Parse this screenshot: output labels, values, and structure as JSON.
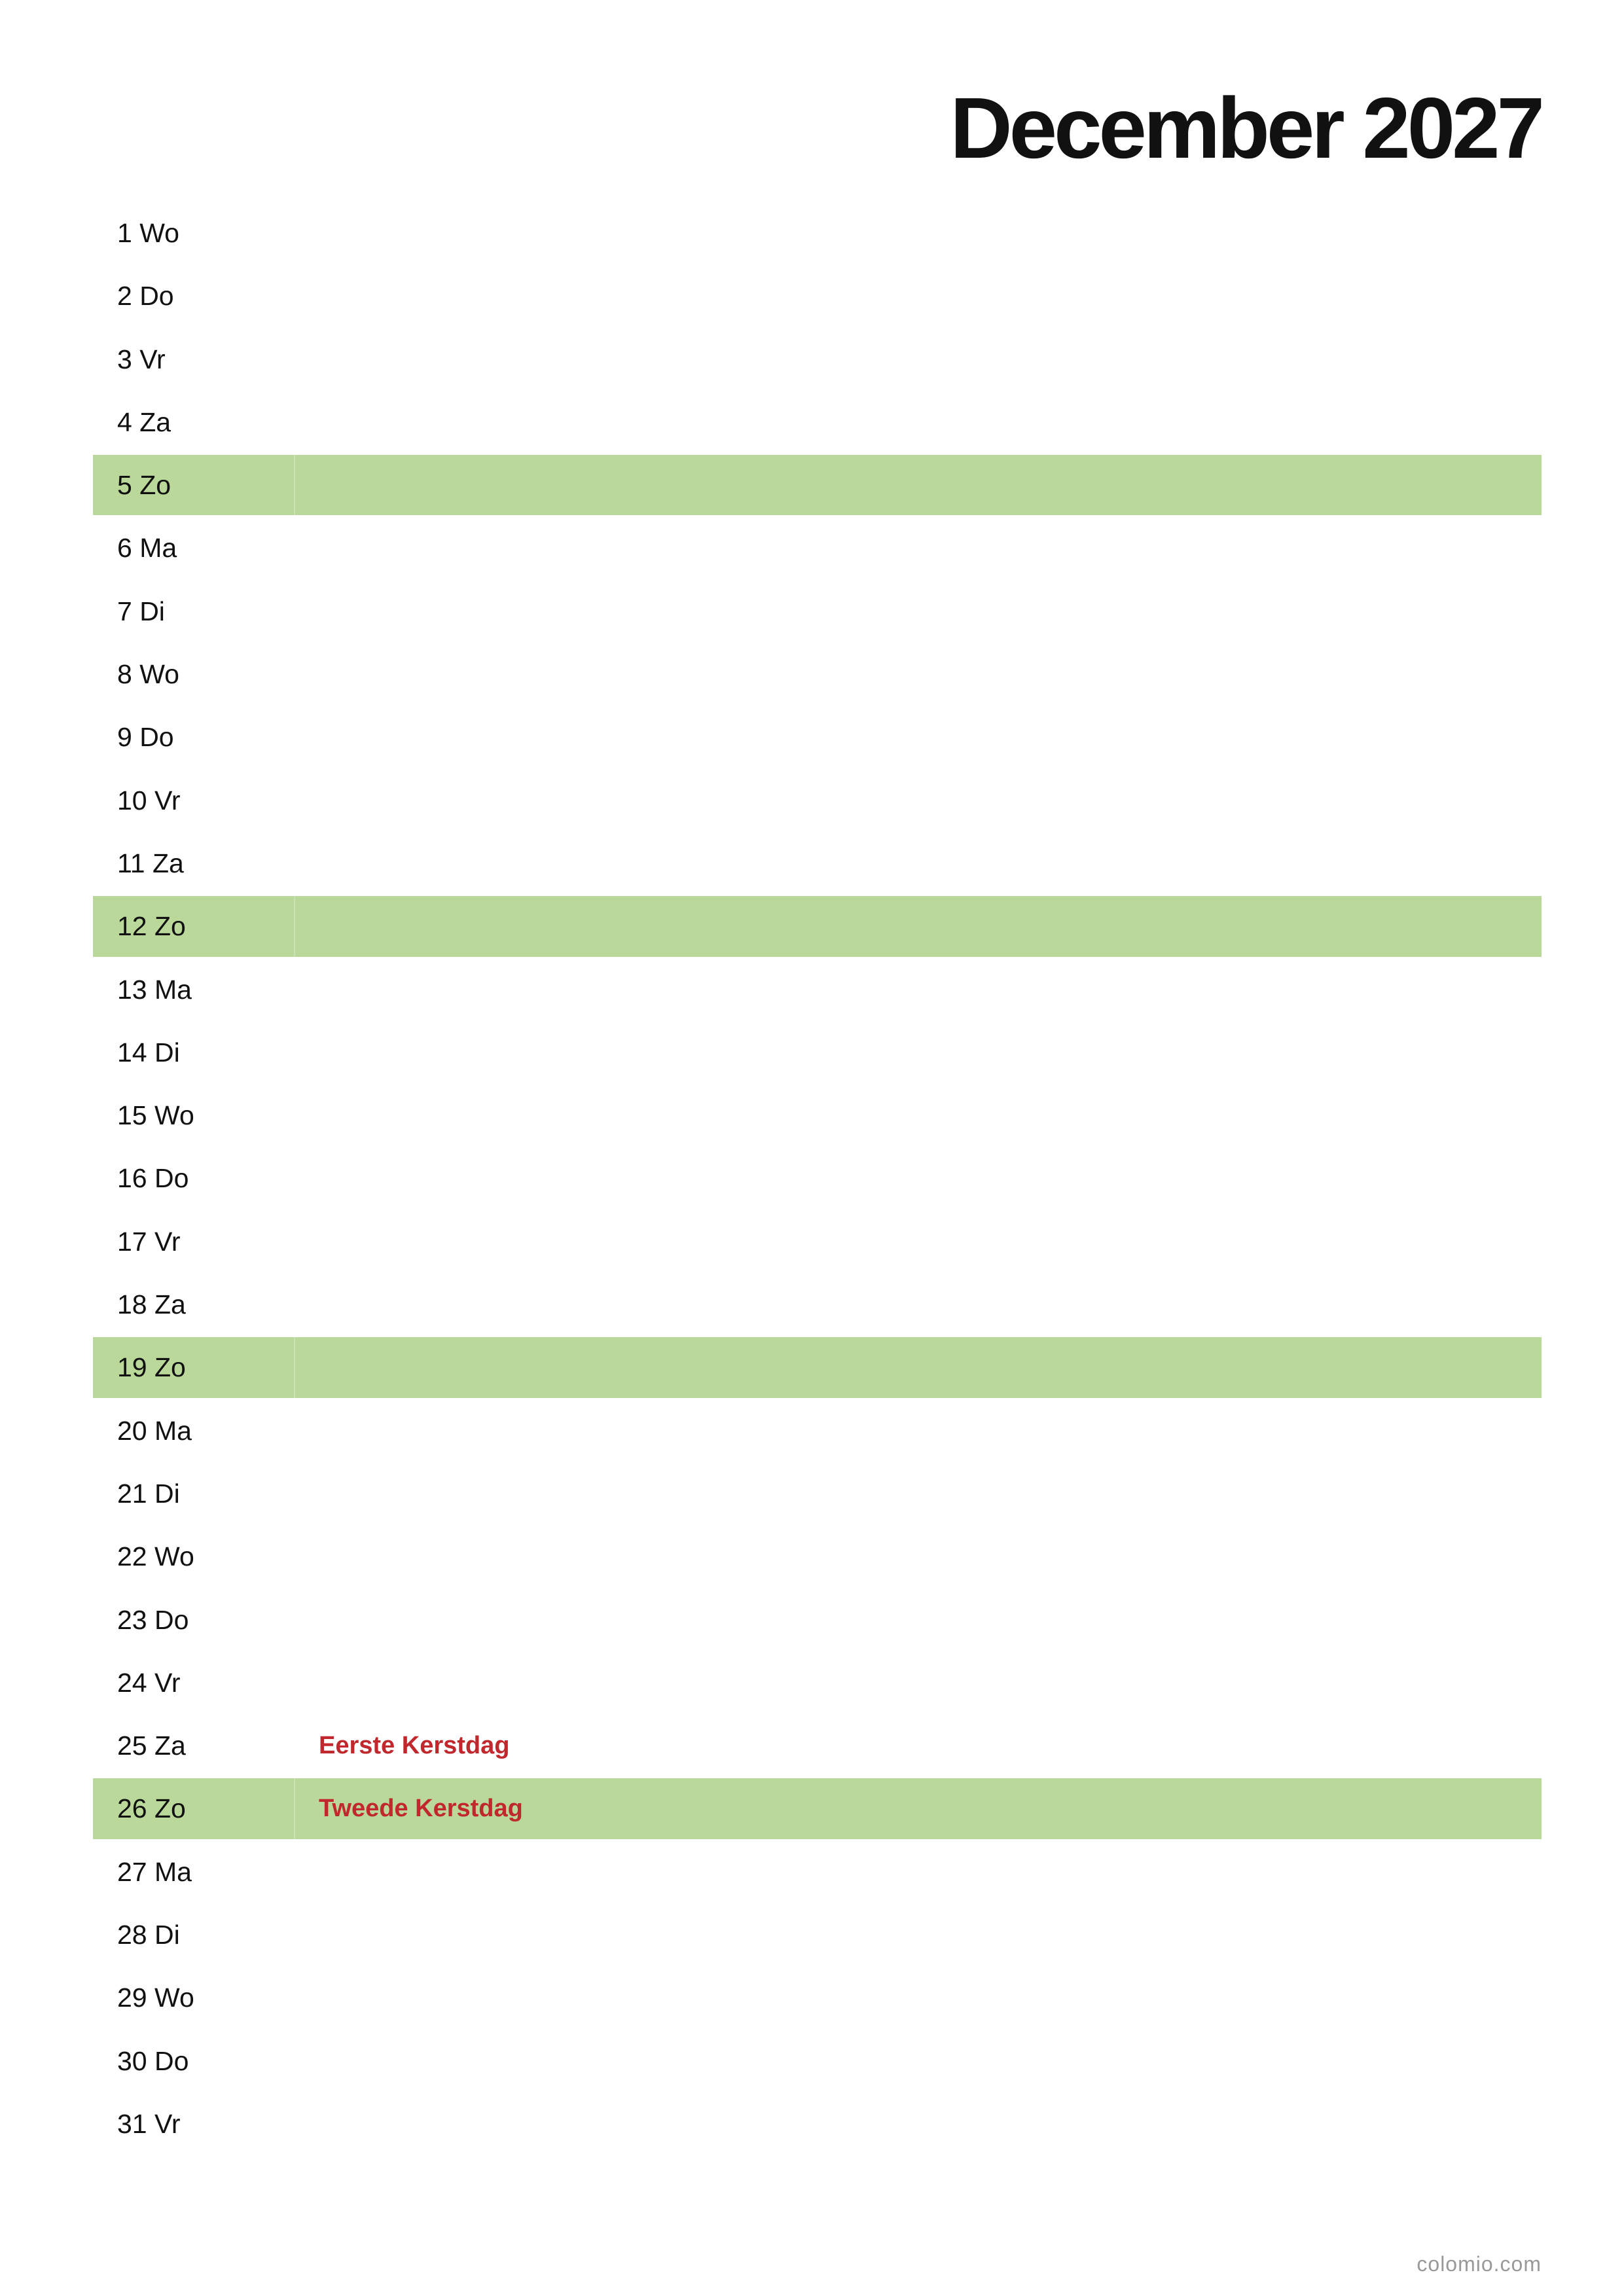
{
  "header": {
    "title": "December 2027"
  },
  "highlight_color": "#b9d89a",
  "holiday_color": "#c0282d",
  "rows": [
    {
      "label": "1 Wo"
    },
    {
      "label": "2 Do"
    },
    {
      "label": "3 Vr"
    },
    {
      "label": "4 Za"
    },
    {
      "label": "5 Zo",
      "highlight": true
    },
    {
      "label": "6 Ma"
    },
    {
      "label": "7 Di"
    },
    {
      "label": "8 Wo"
    },
    {
      "label": "9 Do"
    },
    {
      "label": "10 Vr"
    },
    {
      "label": "11 Za"
    },
    {
      "label": "12 Zo",
      "highlight": true
    },
    {
      "label": "13 Ma"
    },
    {
      "label": "14 Di"
    },
    {
      "label": "15 Wo"
    },
    {
      "label": "16 Do"
    },
    {
      "label": "17 Vr"
    },
    {
      "label": "18 Za"
    },
    {
      "label": "19 Zo",
      "highlight": true
    },
    {
      "label": "20 Ma"
    },
    {
      "label": "21 Di"
    },
    {
      "label": "22 Wo"
    },
    {
      "label": "23 Do"
    },
    {
      "label": "24 Vr"
    },
    {
      "label": "25 Za",
      "holiday": "Eerste Kerstdag"
    },
    {
      "label": "26 Zo",
      "highlight": true,
      "holiday": "Tweede Kerstdag"
    },
    {
      "label": "27 Ma"
    },
    {
      "label": "28 Di"
    },
    {
      "label": "29 Wo"
    },
    {
      "label": "30 Do"
    },
    {
      "label": "31 Vr"
    }
  ],
  "footer": {
    "text": "colomio.com"
  }
}
